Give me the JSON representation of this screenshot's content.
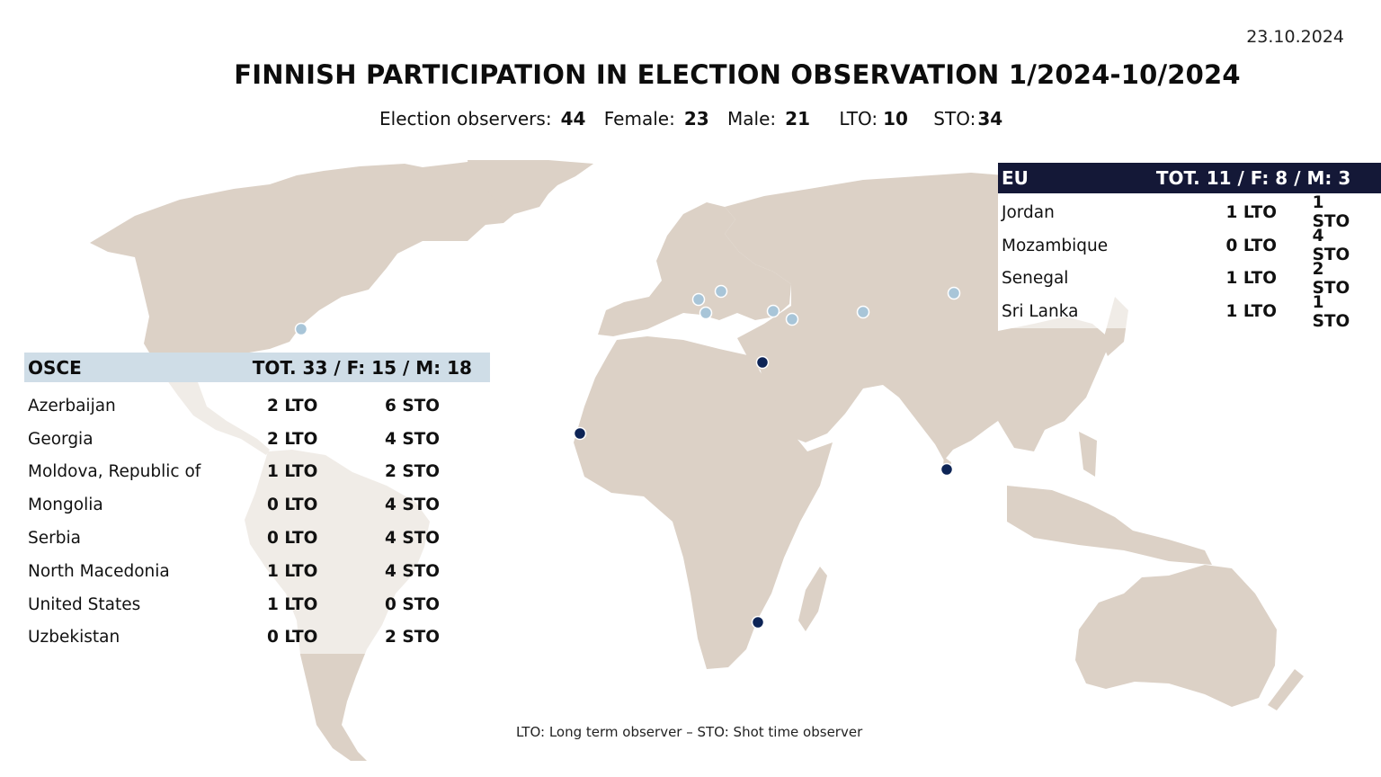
{
  "date": "23.10.2024",
  "title": "FINNISH PARTICIPATION IN ELECTION OBSERVATION 1/2024-10/2024",
  "stats": {
    "observers_label": "Election observers:",
    "observers_value": "44",
    "female_label": "Female:",
    "female_value": "23",
    "male_label": "Male:",
    "male_value": "21",
    "lto_label": "LTO:",
    "lto_value": "10",
    "sto_label": "STO:",
    "sto_value": "34"
  },
  "osce": {
    "name": "OSCE",
    "total": "TOT. 33 / F: 15 / M: 18",
    "header_color": "#cfdde7",
    "marker_color": "#a8c5d8",
    "rows": [
      {
        "country": "Azerbaijan",
        "lto": "2 LTO",
        "sto": "6 STO"
      },
      {
        "country": "Georgia",
        "lto": "2 LTO",
        "sto": "4 STO"
      },
      {
        "country": "Moldova, Republic of",
        "lto": "1 LTO",
        "sto": "2 STO"
      },
      {
        "country": "Mongolia",
        "lto": "0 LTO",
        "sto": "4 STO"
      },
      {
        "country": "Serbia",
        "lto": "0 LTO",
        "sto": "4 STO"
      },
      {
        "country": "North Macedonia",
        "lto": "1 LTO",
        "sto": "4 STO"
      },
      {
        "country": "United States",
        "lto": "1 LTO",
        "sto": "0 STO"
      },
      {
        "country": "Uzbekistan",
        "lto": "0 LTO",
        "sto": "2 STO"
      }
    ]
  },
  "eu": {
    "name": "EU",
    "total": "TOT. 11 / F: 8 / M: 3",
    "header_color": "#141837",
    "marker_color": "#0d2456",
    "rows": [
      {
        "country": "Jordan",
        "lto": "1 LTO",
        "sto": "1 STO"
      },
      {
        "country": "Mozambique",
        "lto": "0 LTO",
        "sto": "4 STO"
      },
      {
        "country": "Senegal",
        "lto": "1 LTO",
        "sto": "2 STO"
      },
      {
        "country": "Sri Lanka",
        "lto": "1 LTO",
        "sto": "1 STO"
      }
    ]
  },
  "land_color": "#dcd1c6",
  "footnote": "LTO: Long term observer – STO: Shot time observer"
}
